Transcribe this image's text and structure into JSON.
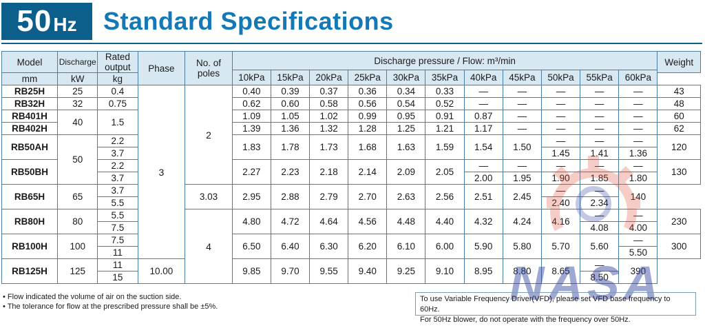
{
  "header": {
    "freq_number": "50",
    "freq_unit": "Hz",
    "title": "Standard Specifications"
  },
  "columns": {
    "model": "Model",
    "discharge": "Discharge",
    "discharge_unit": "mm",
    "rated_output": "Rated output",
    "rated_unit": "kW",
    "phase": "Phase",
    "poles": "No. of poles",
    "pressure_group": "Discharge pressure / Flow: m³/min",
    "pressures": [
      "10kPa",
      "15kPa",
      "20kPa",
      "25kPa",
      "30kPa",
      "35kPa",
      "40kPa",
      "45kPa",
      "50kPa",
      "55kPa",
      "60kPa"
    ],
    "weight": "Weight",
    "weight_unit": "kg"
  },
  "phase_value": "3",
  "poles_2": "2",
  "poles_4": "4",
  "rows": {
    "rb25h": {
      "model": "RB25H",
      "discharge": "25",
      "kw": "0.4",
      "flows": [
        "0.40",
        "0.39",
        "0.37",
        "0.36",
        "0.34",
        "0.33",
        "—",
        "—",
        "—",
        "—",
        "—"
      ],
      "weight": "43"
    },
    "rb32h": {
      "model": "RB32H",
      "discharge": "32",
      "kw": "0.75",
      "flows": [
        "0.62",
        "0.60",
        "0.58",
        "0.56",
        "0.54",
        "0.52",
        "—",
        "—",
        "—",
        "—",
        "—"
      ],
      "weight": "48"
    },
    "rb401h": {
      "model": "RB401H",
      "flows": [
        "1.09",
        "1.05",
        "1.02",
        "0.99",
        "0.95",
        "0.91",
        "0.87",
        "—",
        "—",
        "—",
        "—"
      ],
      "weight": "60"
    },
    "rb402h": {
      "model": "RB402H",
      "flows": [
        "1.39",
        "1.36",
        "1.32",
        "1.28",
        "1.25",
        "1.21",
        "1.17",
        "—",
        "—",
        "—",
        "—"
      ],
      "weight": "62"
    },
    "rb40_discharge": "40",
    "rb40_kw": "1.5",
    "rb50_discharge": "50",
    "rb50ah": {
      "model": "RB50AH",
      "kw": [
        "2.2",
        "3.7"
      ],
      "flows": [
        "1.83",
        "1.78",
        "1.73",
        "1.68",
        "1.63",
        "1.59",
        "1.54",
        "1.50"
      ],
      "split": [
        [
          "—",
          "1.45"
        ],
        [
          "—",
          "1.41"
        ],
        [
          "—",
          "1.36"
        ]
      ],
      "weight": "120"
    },
    "rb50bh": {
      "model": "RB50BH",
      "kw": [
        "2.2",
        "3.7"
      ],
      "flows": [
        "2.27",
        "2.23",
        "2.18",
        "2.14",
        "2.09",
        "2.05"
      ],
      "split": [
        [
          "—",
          "2.00"
        ],
        [
          "—",
          "1.95"
        ],
        [
          "—",
          "1.90"
        ],
        [
          "—",
          "1.85"
        ],
        [
          "—",
          "1.80"
        ]
      ],
      "weight": "130"
    },
    "rb65h": {
      "model": "RB65H",
      "discharge": "65",
      "kw": [
        "3.7",
        "5.5"
      ],
      "flows": [
        "3.03",
        "2.95",
        "2.88",
        "2.79",
        "2.70",
        "2.63",
        "2.56",
        "2.51",
        "2.45"
      ],
      "split": [
        [
          "—",
          "2.40"
        ],
        [
          "—",
          "2.34"
        ]
      ],
      "weight": "140"
    },
    "rb80h": {
      "model": "RB80H",
      "discharge": "80",
      "kw": [
        "5.5",
        "7.5"
      ],
      "flows": [
        "4.80",
        "4.72",
        "4.64",
        "4.56",
        "4.48",
        "4.40",
        "4.32",
        "4.24",
        "4.16"
      ],
      "split": [
        [
          "—",
          "4.08"
        ],
        [
          "—",
          "4.00"
        ]
      ],
      "weight": "230"
    },
    "rb100h": {
      "model": "RB100H",
      "discharge": "100",
      "kw": [
        "7.5",
        "11"
      ],
      "flows": [
        "6.50",
        "6.40",
        "6.30",
        "6.20",
        "6.10",
        "6.00",
        "5.90",
        "5.80",
        "5.70",
        "5.60"
      ],
      "split": [
        [
          "—",
          "5.50"
        ]
      ],
      "weight": "300"
    },
    "rb125h": {
      "model": "RB125H",
      "discharge": "125",
      "kw": [
        "11",
        "15"
      ],
      "flows": [
        "10.00",
        "9.85",
        "9.70",
        "9.55",
        "9.40",
        "9.25",
        "9.10",
        "8.95",
        "8.80",
        "8.65"
      ],
      "split": [
        [
          "—",
          "8.50"
        ]
      ],
      "weight": "390"
    }
  },
  "notes": [
    "• Flow indicated the volume of air on the suction side.",
    "• The tolerance for flow at the prescribed pressure shall be ±5%."
  ],
  "notice": [
    "To use Variable Frequency Driver(VFD), please set VFD base frequency to 60Hz.",
    "For 50Hz blower, do not operate with the frequency over 50Hz."
  ],
  "watermark": {
    "text": "NASA",
    "gear_color": "#e04a3a",
    "text_color": "#2d3ea0"
  },
  "colors": {
    "header_bg": "#0b5f8a",
    "title": "#1378b5",
    "table_head": "#d7e8f3",
    "border": "#4a7ea0"
  }
}
